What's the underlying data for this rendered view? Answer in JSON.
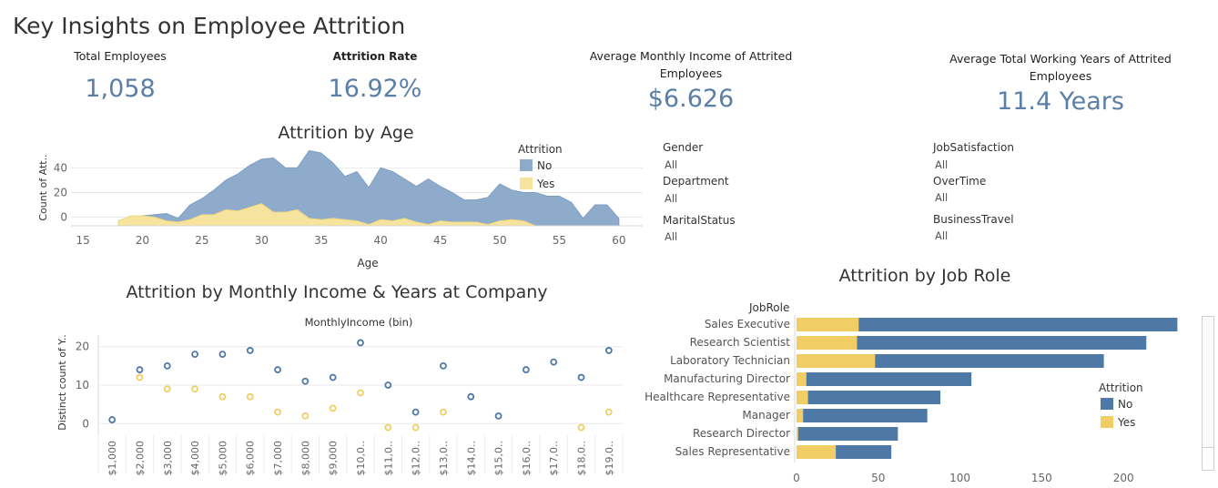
{
  "page_title": "Key Insights on Employee Attrition",
  "kpis": [
    {
      "label": "Total Employees",
      "value": "1,058"
    },
    {
      "label": "Attrition Rate",
      "value": "16.92%"
    },
    {
      "label": "Average Monthly Income of Attrited Employees",
      "value": "$6.626"
    },
    {
      "label": "Average Total Working Years of Attrited Employees",
      "value": "11.4 Years"
    }
  ],
  "filters": [
    {
      "label": "Gender",
      "value": "All"
    },
    {
      "label": "Department",
      "value": "All"
    },
    {
      "label": "MaritalStatus",
      "value": "All"
    },
    {
      "label": "JobSatisfaction",
      "value": "All"
    },
    {
      "label": "OverTime",
      "value": "All"
    },
    {
      "label": "BusinessTravel",
      "value": "All"
    }
  ],
  "colors": {
    "no": "#4e79a7",
    "no_area": "#8eabcc",
    "yes": "#f1ce63",
    "yes_area": "#f6e39e",
    "grid": "#e8e8e8",
    "axis_text": "#666666"
  },
  "chart_data": [
    {
      "type": "area",
      "title": "Attrition by Age",
      "xlabel": "Age",
      "ylabel": "Count of Att..",
      "xlim": [
        14,
        62
      ],
      "ylim": [
        -7,
        58
      ],
      "xticks": [
        15,
        20,
        25,
        30,
        35,
        40,
        45,
        50,
        55,
        60
      ],
      "yticks": [
        0,
        20,
        40
      ],
      "legend": {
        "title": "Attrition",
        "entries": [
          "No",
          "Yes"
        ],
        "position": "top-right"
      },
      "x": [
        18,
        19,
        20,
        21,
        22,
        23,
        24,
        25,
        26,
        27,
        28,
        29,
        30,
        31,
        32,
        33,
        34,
        35,
        36,
        37,
        38,
        39,
        40,
        41,
        42,
        43,
        44,
        45,
        46,
        47,
        48,
        49,
        50,
        51,
        52,
        53,
        54,
        55,
        56,
        57,
        58,
        59,
        60
      ],
      "series": [
        {
          "name": "No",
          "values": [
            -3,
            0,
            1,
            2,
            3,
            -1,
            10,
            15,
            22,
            30,
            35,
            42,
            47,
            48,
            40,
            40,
            54,
            52,
            44,
            33,
            37,
            24,
            40,
            37,
            31,
            25,
            31,
            25,
            20,
            14,
            14,
            16,
            27,
            22,
            20,
            20,
            17,
            17,
            12,
            -1,
            10,
            10,
            -1
          ]
        },
        {
          "name": "Yes",
          "values": [
            -3,
            1,
            1,
            0,
            -3,
            -4,
            -2,
            2,
            2,
            6,
            5,
            8,
            11,
            4,
            4,
            6,
            -1,
            -2,
            -1,
            -2,
            -3,
            -6,
            -2,
            -3,
            -1,
            -4,
            -6,
            -3,
            -4,
            -4,
            -4,
            -6,
            -3,
            -2,
            -3,
            -7,
            -7,
            -7,
            -7,
            -7,
            -7,
            -7,
            -7
          ]
        }
      ]
    },
    {
      "type": "scatter",
      "title": "Attrition by Monthly Income & Years at Company",
      "column_header": "MonthlyIncome (bin)",
      "ylabel": "Distinct count of Y..",
      "ylim": [
        -3,
        23
      ],
      "yticks": [
        0,
        10,
        20
      ],
      "categories": [
        "$1,000",
        "$2,000",
        "$3,000",
        "$4,000",
        "$5,000",
        "$6,000",
        "$7,000",
        "$8,000",
        "$9,000",
        "$10,0..",
        "$11,0..",
        "$12,0..",
        "$13,0..",
        "$14,0..",
        "$15,0..",
        "$16,0..",
        "$17,0..",
        "$18,0..",
        "$19,0.."
      ],
      "series": [
        {
          "name": "No",
          "values": [
            1,
            14,
            15,
            18,
            18,
            19,
            14,
            11,
            12,
            21,
            10,
            3,
            15,
            7,
            2,
            14,
            16,
            12,
            19
          ]
        },
        {
          "name": "Yes",
          "values": [
            null,
            12,
            9,
            9,
            7,
            7,
            3,
            2,
            4,
            8,
            -1,
            -1,
            3,
            null,
            null,
            null,
            null,
            -1,
            3
          ]
        }
      ]
    },
    {
      "type": "bar",
      "orientation": "horizontal",
      "stacked": true,
      "title": "Attrition by Job Role",
      "row_header": "JobRole",
      "xlim": [
        0,
        235
      ],
      "xticks": [
        0,
        50,
        100,
        150,
        200
      ],
      "legend": {
        "title": "Attrition",
        "entries": [
          "No",
          "Yes"
        ],
        "position": "right"
      },
      "categories": [
        "Sales Executive",
        "Research Scientist",
        "Laboratory Technician",
        "Manufacturing Director",
        "Healthcare Representative",
        "Manager",
        "Research Director",
        "Sales Representative"
      ],
      "series": [
        {
          "name": "Yes",
          "values": [
            38,
            37,
            48,
            6,
            7,
            4,
            1,
            24
          ]
        },
        {
          "name": "No",
          "values": [
            195,
            177,
            140,
            101,
            81,
            76,
            61,
            34
          ]
        }
      ]
    }
  ]
}
